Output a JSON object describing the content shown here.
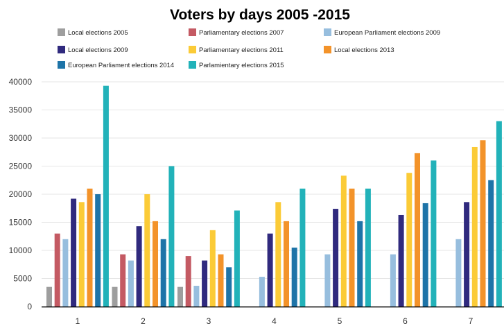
{
  "chart_data": {
    "type": "bar",
    "title": "Voters by days 2005 -2015",
    "xlabel": "",
    "ylabel": "",
    "categories": [
      "1",
      "2",
      "3",
      "4",
      "5",
      "6",
      "7"
    ],
    "yticks": [
      "0",
      "5000",
      "10000",
      "15000",
      "20000",
      "25000",
      "30000",
      "35000",
      "40000"
    ],
    "ylim": [
      0,
      40000
    ],
    "grid": true,
    "legend_position": "top",
    "series": [
      {
        "name": "Local elections 2005",
        "color": "#9e9e9e",
        "values": [
          3500,
          3500,
          3500,
          null,
          null,
          null,
          null
        ]
      },
      {
        "name": "Parliamentary elections 2007",
        "color": "#c45a63",
        "values": [
          13000,
          9300,
          9000,
          null,
          null,
          null,
          null
        ]
      },
      {
        "name": "European Parliament elections 2009",
        "color": "#97bede",
        "values": [
          12000,
          8200,
          3700,
          5300,
          9300,
          9300,
          12000
        ]
      },
      {
        "name": "Local elections 2009",
        "color": "#302a7e",
        "values": [
          19200,
          14300,
          8200,
          13000,
          17400,
          16300,
          18600
        ]
      },
      {
        "name": "Parliamentary elections 2011",
        "color": "#fbcb37",
        "values": [
          18600,
          20000,
          13600,
          18600,
          23300,
          23800,
          28400
        ]
      },
      {
        "name": "Local elections 2013",
        "color": "#f3932a",
        "values": [
          21000,
          15200,
          9300,
          15200,
          21000,
          27300,
          29600
        ]
      },
      {
        "name": "European Parliament elections 2014",
        "color": "#1e74a8",
        "values": [
          20000,
          12000,
          7000,
          10500,
          15200,
          18400,
          22500
        ]
      },
      {
        "name": "Parlamientary elections 2015",
        "color": "#22b2b9",
        "values": [
          39300,
          25000,
          17100,
          21000,
          21000,
          26000,
          33000
        ]
      }
    ]
  }
}
